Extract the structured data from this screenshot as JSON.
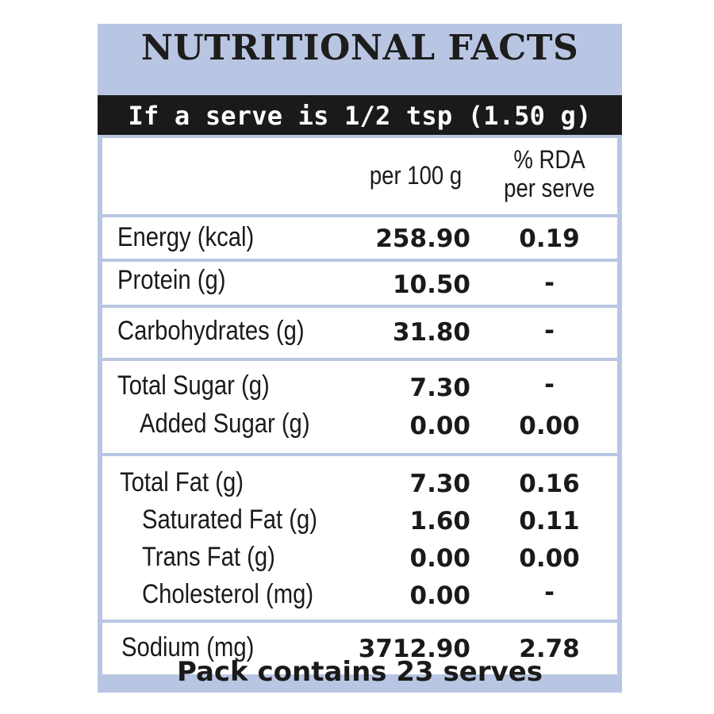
{
  "title": "NUTRITIONAL FACTS",
  "serving": "If a serve is 1/2 tsp (1.50 g)",
  "columns": {
    "per_100g": "per 100 g",
    "rda_line1": "% RDA",
    "rda_line2": "per serve"
  },
  "rows": {
    "energy": {
      "label": "Energy (kcal)",
      "value": "258.90",
      "rda": "0.19"
    },
    "protein": {
      "label": "Protein (g)",
      "value": "10.50",
      "rda": "-"
    },
    "carbs": {
      "label": "Carbohydrates (g)",
      "value": "31.80",
      "rda": "-"
    },
    "total_sugar": {
      "label": "Total Sugar (g)",
      "value": "7.30",
      "rda": "-"
    },
    "added_sugar": {
      "label": "Added Sugar (g)",
      "value": "0.00",
      "rda": "0.00"
    },
    "total_fat": {
      "label": "Total Fat (g)",
      "value": "7.30",
      "rda": "0.16"
    },
    "sat_fat": {
      "label": "Saturated Fat (g)",
      "value": "1.60",
      "rda": "0.11"
    },
    "trans_fat": {
      "label": "Trans Fat (g)",
      "value": "0.00",
      "rda": "0.00"
    },
    "cholesterol": {
      "label": "Cholesterol (mg)",
      "value": "0.00",
      "rda": "-"
    },
    "sodium": {
      "label": "Sodium (mg)",
      "value": "3712.90",
      "rda": "2.78"
    }
  },
  "footer": "Pack contains 23 serves",
  "colors": {
    "panel": "#b9c6e3",
    "bar": "#1a1a1a",
    "cell": "#ffffff",
    "text": "#1a1a1a"
  }
}
